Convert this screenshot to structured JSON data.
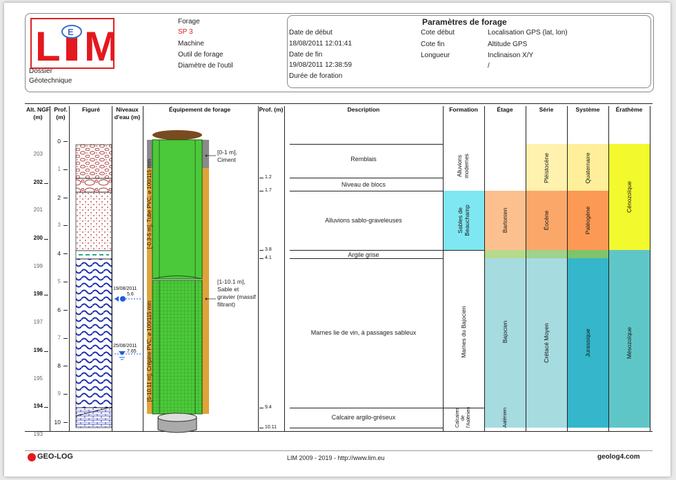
{
  "header": {
    "logo_text": "LIM",
    "dossier_label": "Dossier",
    "dossier_value": "Géotechnique",
    "forage_label": "Forage",
    "forage_value": "SP 3",
    "machine_label": "Machine",
    "outil_label": "Outil de forage",
    "diametre_label": "Diamètre de l'outil",
    "params_title": "Paramètres de forage",
    "date_debut_label": "Date de début",
    "date_debut_value": "18/08/2011 12:01:41",
    "date_fin_label": "Date de fin",
    "date_fin_value": "19/08/2011 12:38:59",
    "duree_label": "Durée de foration",
    "cote_debut_label": "Cote début",
    "cote_fin_label": "Cote fin",
    "longueur_label": "Longueur",
    "gps_label": "Localisation GPS (lat, lon)",
    "altitude_label": "Altitude GPS",
    "inclinaison_label": "Inclinaison X/Y",
    "inclinaison_value": "/"
  },
  "columns": {
    "alt": "Alt. NGF (m)",
    "prof": "Prof. (m)",
    "figure": "Figuré",
    "niveaux": "Niveaux d'eau (m)",
    "equipement": "Équipement de forage",
    "prof2": "Prof. (m)",
    "description": "Description",
    "formation": "Formation",
    "etage": "Étage",
    "serie": "Série",
    "systeme": "Système",
    "eratheme": "Érathème"
  },
  "alt_ticks": [
    "203",
    "202",
    "201",
    "200",
    "199",
    "198",
    "197",
    "196",
    "195",
    "194",
    "193"
  ],
  "depth_ticks": [
    "0",
    "1",
    "2",
    "3",
    "4",
    "5",
    "6",
    "7",
    "8",
    "9",
    "10"
  ],
  "water_levels": [
    {
      "date": "19/08/2011",
      "value": "5.6"
    },
    {
      "date": "25/08/2011",
      "value": "7.65"
    }
  ],
  "equipment": {
    "cement": "[0-1 m], Ciment",
    "gravel": "[1-10.1 m], Sable et gravier (massif filtrant)",
    "tube": "[-0.3-5 m], Tube PVC, ⌀ 100/115 mm",
    "crepine": "[5-10.11 m], Crépine PVC, ⌀ 100/115 mm"
  },
  "layer_depths": [
    "1.2",
    "1.7",
    "3.8",
    "4.1",
    "9.4",
    "10.11"
  ],
  "descriptions": [
    "Remblais",
    "Niveau de blocs",
    "Alluvions sablo-graveleuses",
    "Argile grise",
    "Marnes lie de vin, à passages sableux",
    "Calcaire argilo-gréseux"
  ],
  "formations": [
    "Alluvions modernes",
    "Sables de Beauchamp",
    "Marnes du Bajocien",
    "Calcaires de l'Aalénien"
  ],
  "etages": [
    "Bartonien",
    "Bajocien",
    "Aalénien"
  ],
  "series": [
    "Pléistocène",
    "Éocène",
    "Crétacé Moyen"
  ],
  "systemes": [
    "Quaternaire",
    "Paléogène",
    "Jurassique"
  ],
  "erathemes": [
    "Cénozoïque",
    "Mésozoïque"
  ],
  "colors": {
    "sable": "#7fe7f2",
    "bartonien": "#fbc08e",
    "bajocien": "#a6dbe0",
    "pleistocene": "#fff2ae",
    "eocene": "#fca76a",
    "cretace": "#a6dbe0",
    "quaternaire": "#ffef9a",
    "paleogene": "#fc9a55",
    "jurassique": "#35b6cb",
    "cenozoique": "#f2f92d",
    "mesozoique": "#5fc6c8",
    "green": "#4cc93a"
  },
  "footer": {
    "brand": "GEO-LOG",
    "center": "LIM 2009 - 2019 - http://www.lim.eu",
    "right": "geolog4.com"
  }
}
